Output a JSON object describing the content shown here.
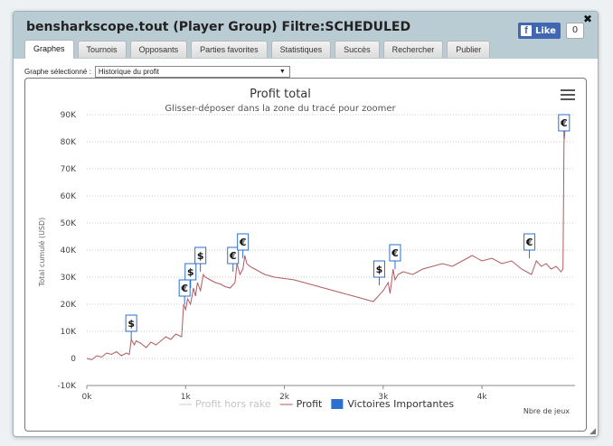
{
  "window": {
    "title": "bensharkscope.tout (Player Group) Filtre:SCHEDULED",
    "close_label": "✖",
    "facebook": {
      "like_label": "Like",
      "count": "0"
    }
  },
  "tabs": [
    {
      "label": "Graphes",
      "active": true
    },
    {
      "label": "Tournois"
    },
    {
      "label": "Opposants"
    },
    {
      "label": "Parties favorites"
    },
    {
      "label": "Statistiques"
    },
    {
      "label": "Succès"
    },
    {
      "label": "Rechercher"
    },
    {
      "label": "Publier"
    }
  ],
  "graph_selector": {
    "label": "Graphe sélectionné :",
    "selected": "Historique du profit",
    "arrow": "▼"
  },
  "chart_data": {
    "type": "line",
    "title": "Profit total",
    "subtitle": "Glisser-déposer dans la zone du tracé pour zoomer",
    "ylabel": "Total cumulé (USD)",
    "xlabel": "Nbre de jeux",
    "ylim": [
      -10000,
      90000
    ],
    "xlim": [
      0,
      4850
    ],
    "y_ticks": [
      -10000,
      0,
      10000,
      20000,
      30000,
      40000,
      50000,
      60000,
      70000,
      80000,
      90000
    ],
    "y_tick_labels": [
      "-10K",
      "0",
      "10K",
      "20K",
      "30K",
      "40K",
      "50K",
      "60K",
      "70K",
      "80K",
      "90K"
    ],
    "x_ticks": [
      0,
      1000,
      2000,
      3000,
      4000
    ],
    "x_tick_labels": [
      "0k",
      "1k",
      "2k",
      "3k",
      "4k"
    ],
    "grid": "horizontal-dotted",
    "legend_placement": "bottom-center",
    "legend": [
      {
        "name": "Profit hors rake",
        "color": "#cccccc",
        "kind": "line",
        "dimmed": true
      },
      {
        "name": "Profit",
        "color": "#b05a5f",
        "kind": "line"
      },
      {
        "name": "Victoires Importantes",
        "color": "#2b6fcf",
        "kind": "box"
      }
    ],
    "series": [
      {
        "name": "Profit",
        "color": "#b05a5f",
        "x": [
          0,
          50,
          100,
          150,
          200,
          250,
          300,
          350,
          400,
          430,
          450,
          480,
          500,
          550,
          600,
          650,
          700,
          750,
          800,
          850,
          900,
          960,
          980,
          1000,
          1020,
          1050,
          1080,
          1100,
          1120,
          1150,
          1180,
          1200,
          1250,
          1300,
          1350,
          1400,
          1450,
          1500,
          1520,
          1550,
          1580,
          1600,
          1620,
          1650,
          1700,
          1800,
          1900,
          2000,
          2100,
          2200,
          2300,
          2400,
          2500,
          2600,
          2700,
          2800,
          2900,
          3000,
          3050,
          3070,
          3100,
          3120,
          3150,
          3200,
          3300,
          3400,
          3500,
          3600,
          3700,
          3800,
          3900,
          3950,
          4000,
          4100,
          4200,
          4300,
          4400,
          4500,
          4550,
          4600,
          4650,
          4700,
          4750,
          4800,
          4820,
          4830,
          4840
        ],
        "y": [
          0,
          -500,
          1000,
          500,
          2000,
          1500,
          2500,
          1000,
          2000,
          1500,
          7000,
          5000,
          6500,
          5500,
          4000,
          6000,
          5000,
          6500,
          8000,
          7000,
          9000,
          8000,
          20000,
          18000,
          22000,
          20000,
          26000,
          23000,
          28000,
          25000,
          31000,
          30000,
          29000,
          28000,
          27500,
          26500,
          26000,
          28000,
          35000,
          31000,
          33000,
          38000,
          35000,
          34000,
          33000,
          31000,
          30000,
          29500,
          29000,
          28000,
          27000,
          26000,
          25000,
          24000,
          23000,
          22000,
          21000,
          25000,
          28000,
          24000,
          33000,
          29000,
          31000,
          32000,
          31000,
          33000,
          34000,
          35000,
          34000,
          36000,
          38000,
          37000,
          36000,
          37000,
          35000,
          36000,
          33000,
          31000,
          36000,
          34000,
          35000,
          33000,
          34000,
          32000,
          33000,
          80000,
          84000
        ]
      }
    ],
    "markers": [
      {
        "x": 450,
        "y": 7000,
        "symbol": "$"
      },
      {
        "x": 990,
        "y": 20000,
        "symbol": "€"
      },
      {
        "x": 1050,
        "y": 26000,
        "symbol": "$"
      },
      {
        "x": 1150,
        "y": 32000,
        "symbol": "$"
      },
      {
        "x": 1480,
        "y": 32000,
        "symbol": "€"
      },
      {
        "x": 1580,
        "y": 37000,
        "symbol": "€"
      },
      {
        "x": 2960,
        "y": 27000,
        "symbol": "$"
      },
      {
        "x": 3120,
        "y": 33000,
        "symbol": "€"
      },
      {
        "x": 4480,
        "y": 37000,
        "symbol": "€"
      },
      {
        "x": 4830,
        "y": 81000,
        "symbol": "€"
      }
    ]
  }
}
